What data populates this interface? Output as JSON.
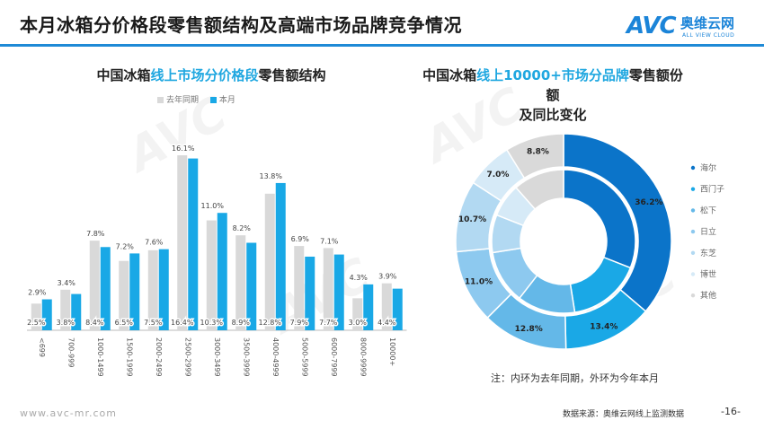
{
  "page_title": "本月冰箱分价格段零售额结构及高端市场品牌竞争情况",
  "logo": {
    "mark": "AVC",
    "cn": "奥维云网",
    "en": "ALL VIEW CLOUD"
  },
  "left_title": {
    "pre": "中国冰箱",
    "hl": "线上市场分价格段",
    "post": "零售额结构"
  },
  "right_title": {
    "pre": "中国冰箱",
    "hl": "线上10000+市场分品牌",
    "post": "零售额份额",
    "line2": "及同比变化"
  },
  "note": "注：内环为去年同期，外环为今年本月",
  "footer": {
    "url": "www.avc-mr.com",
    "source": "数据来源：奥维云网线上监测数据",
    "page": "-16-"
  },
  "colors": {
    "bar_prev": "#d9d9d9",
    "bar_curr": "#19a8e6",
    "brand": "#1f8ad6",
    "donut": [
      "#0b74c9",
      "#1aa8e6",
      "#64b8e8",
      "#8dc9ef",
      "#b2d9f2",
      "#d6eaf7",
      "#d9d9d9"
    ]
  },
  "chart_data": [
    {
      "type": "bar",
      "title": "中国冰箱线上市场分价格段零售额结构",
      "categories": [
        "<699",
        "700-999",
        "1000-1499",
        "1500-1999",
        "2000-2499",
        "2500-2999",
        "3000-3499",
        "3500-3999",
        "4000-4999",
        "5000-5999",
        "6000-7999",
        "8000-9999",
        "10000+"
      ],
      "series": [
        {
          "name": "去年同期",
          "values": [
            2.5,
            3.8,
            8.4,
            6.5,
            7.5,
            16.4,
            10.3,
            8.9,
            12.8,
            7.9,
            7.7,
            3.0,
            4.4
          ],
          "labels": [
            "2.5%",
            "3.8%",
            "8.4%",
            "6.5%",
            "7.5%",
            "16.4%",
            "10.3%",
            "8.9%",
            "12.8%",
            "7.9%",
            "7.7%",
            "3.0%",
            "4.4%"
          ]
        },
        {
          "name": "本月",
          "values": [
            2.9,
            3.4,
            7.8,
            7.2,
            7.6,
            16.1,
            11.0,
            8.2,
            13.8,
            6.9,
            7.1,
            4.3,
            3.9
          ],
          "labels": [
            "2.9%",
            "3.4%",
            "7.8%",
            "7.2%",
            "7.6%",
            "16.1%",
            "11.0%",
            "8.2%",
            "13.8%",
            "6.9%",
            "7.1%",
            "4.3%",
            "3.9%"
          ]
        }
      ],
      "ylim": [
        0,
        18
      ],
      "legend_position": "top"
    },
    {
      "type": "pie",
      "title": "中国冰箱线上10000+市场分品牌零售额份额及同比变化",
      "categories": [
        "海尔",
        "西门子",
        "松下",
        "日立",
        "东芝",
        "博世",
        "其他"
      ],
      "outer_ring": {
        "name": "今年本月",
        "values": [
          36.2,
          13.4,
          12.8,
          11.0,
          10.7,
          7.0,
          8.8
        ],
        "labels": [
          "36.2%",
          "13.4%",
          "12.8%",
          "11.0%",
          "10.7%",
          "7.0%",
          "8.8%"
        ]
      },
      "inner_ring": {
        "name": "去年同期",
        "values": [
          31.0,
          16.5,
          13.0,
          12.0,
          8.5,
          7.5,
          11.5
        ]
      },
      "legend_position": "right"
    }
  ]
}
